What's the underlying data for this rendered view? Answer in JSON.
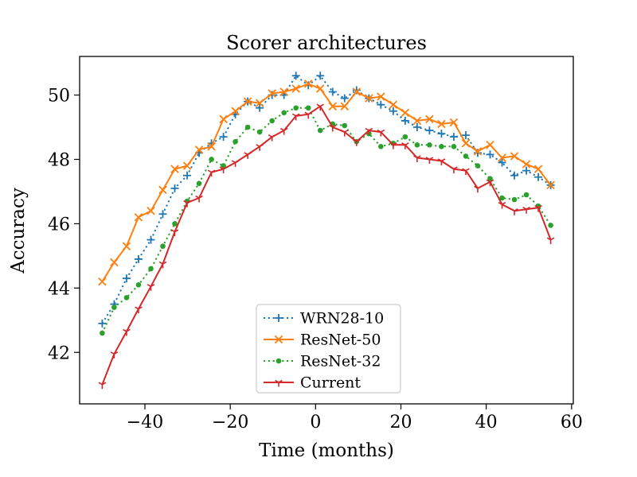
{
  "figure": {
    "background": "#ffffff"
  },
  "chart_data": {
    "type": "line",
    "title": "Scorer architectures",
    "xlabel": "Time (months)",
    "ylabel": "Accuracy",
    "xlim": [
      -55.3,
      60.4
    ],
    "ylim": [
      40.4,
      51.2
    ],
    "xtick_values": [
      -40,
      -20,
      0,
      20,
      40,
      60
    ],
    "xtick_labels": [
      "−40",
      "−20",
      "0",
      "20",
      "40",
      "60"
    ],
    "ytick_values": [
      42,
      44,
      46,
      48,
      50
    ],
    "ytick_labels": [
      "42",
      "44",
      "46",
      "48",
      "50"
    ],
    "grid": false,
    "legend_position": "lower-center-inside",
    "axis_color": "#000000",
    "text_color": "#000000",
    "x": [
      -50.0,
      -47.2,
      -44.3,
      -41.5,
      -38.6,
      -35.8,
      -33.0,
      -30.1,
      -27.3,
      -24.4,
      -21.6,
      -18.8,
      -15.9,
      -13.1,
      -10.2,
      -7.4,
      -4.6,
      -1.7,
      1.1,
      4.0,
      6.8,
      9.6,
      12.5,
      15.3,
      18.2,
      21.0,
      23.8,
      26.7,
      29.5,
      32.4,
      35.2,
      38.0,
      40.9,
      43.7,
      46.6,
      49.4,
      52.2,
      55.1
    ],
    "series": [
      {
        "name": "WRN28-10",
        "color": "#1f77b4",
        "linestyle": "dotted",
        "marker": "plus",
        "values": [
          42.9,
          43.5,
          44.3,
          44.9,
          45.5,
          46.3,
          47.1,
          47.5,
          48.2,
          48.5,
          48.7,
          49.4,
          49.8,
          49.6,
          50.0,
          50.0,
          50.6,
          50.3,
          50.6,
          50.1,
          49.9,
          50.15,
          49.9,
          49.7,
          49.5,
          49.2,
          49.0,
          48.9,
          48.8,
          48.7,
          48.75,
          48.2,
          48.15,
          47.9,
          47.5,
          47.65,
          47.45,
          47.2
        ]
      },
      {
        "name": "ResNet-50",
        "color": "#ff7f0e",
        "linestyle": "solid",
        "marker": "x",
        "values": [
          44.2,
          44.8,
          45.3,
          46.2,
          46.4,
          47.05,
          47.7,
          47.8,
          48.3,
          48.4,
          49.25,
          49.5,
          49.8,
          49.75,
          50.05,
          50.1,
          50.2,
          50.35,
          50.2,
          49.65,
          49.65,
          50.1,
          49.9,
          49.95,
          49.7,
          49.45,
          49.2,
          49.25,
          49.1,
          49.15,
          48.5,
          48.25,
          48.45,
          48.05,
          48.1,
          47.85,
          47.7,
          47.2
        ]
      },
      {
        "name": "ResNet-32",
        "color": "#2ca02c",
        "linestyle": "dotted",
        "marker": "dot",
        "values": [
          42.6,
          43.4,
          43.7,
          44.1,
          44.6,
          45.3,
          46.0,
          46.7,
          47.25,
          48.0,
          47.8,
          48.55,
          49.0,
          48.85,
          49.2,
          49.45,
          49.6,
          49.6,
          48.9,
          49.1,
          49.05,
          48.55,
          48.8,
          48.4,
          48.5,
          48.7,
          48.45,
          48.45,
          48.4,
          48.4,
          48.1,
          47.8,
          47.4,
          46.8,
          46.75,
          46.9,
          46.55,
          45.95
        ]
      },
      {
        "name": "Current",
        "color": "#d62728",
        "linestyle": "solid",
        "marker": "tri-down",
        "values": [
          41.0,
          41.95,
          42.65,
          43.35,
          44.05,
          44.75,
          45.75,
          46.65,
          46.8,
          47.6,
          47.7,
          47.9,
          48.15,
          48.4,
          48.7,
          48.9,
          49.35,
          49.4,
          49.65,
          49.0,
          48.85,
          48.55,
          48.9,
          48.85,
          48.45,
          48.45,
          48.05,
          48.0,
          47.95,
          47.7,
          47.65,
          47.1,
          47.3,
          46.6,
          46.4,
          46.45,
          46.5,
          45.5
        ]
      }
    ]
  }
}
